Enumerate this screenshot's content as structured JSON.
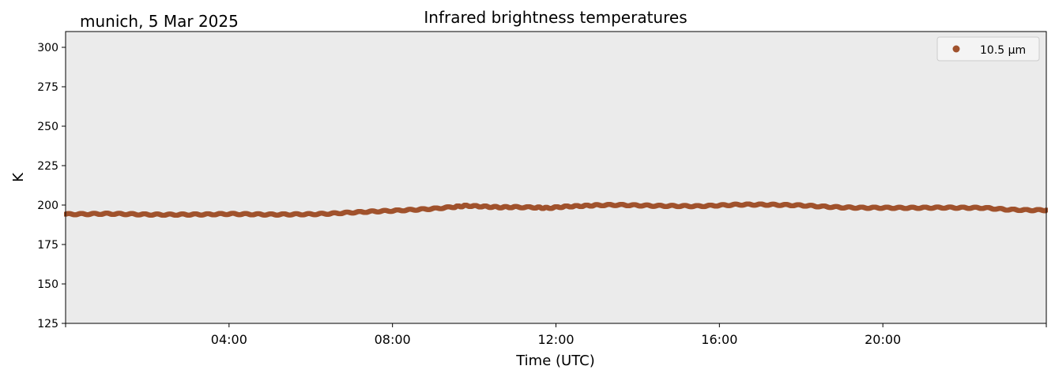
{
  "chart_data": {
    "type": "scatter",
    "title": "Infrared brightness temperatures",
    "location_date": "munich, 5 Mar 2025",
    "xlabel": "Time (UTC)",
    "ylabel": "K",
    "x_unit": "hours UTC",
    "xlim": [
      0,
      24
    ],
    "ylim": [
      125,
      310
    ],
    "y_ticks": [
      125,
      150,
      175,
      200,
      225,
      250,
      275,
      300
    ],
    "x_ticks": [
      {
        "value": 4,
        "label": "04:00"
      },
      {
        "value": 8,
        "label": "08:00"
      },
      {
        "value": 12,
        "label": "12:00"
      },
      {
        "value": 16,
        "label": "16:00"
      },
      {
        "value": 20,
        "label": "20:00"
      }
    ],
    "legend_position": "top-right",
    "series": [
      {
        "name": "10.5 µm",
        "color": "#a0522d",
        "points": [
          [
            0.0,
            194.2
          ],
          [
            0.5,
            194.3
          ],
          [
            1.0,
            194.5
          ],
          [
            1.5,
            194.3
          ],
          [
            2.0,
            194.0
          ],
          [
            2.5,
            193.9
          ],
          [
            3.0,
            194.0
          ],
          [
            3.5,
            194.1
          ],
          [
            4.0,
            194.4
          ],
          [
            4.5,
            194.2
          ],
          [
            5.0,
            194.0
          ],
          [
            5.5,
            194.1
          ],
          [
            6.0,
            194.2
          ],
          [
            6.5,
            194.6
          ],
          [
            7.0,
            195.3
          ],
          [
            7.5,
            195.9
          ],
          [
            8.0,
            196.4
          ],
          [
            8.5,
            197.0
          ],
          [
            9.0,
            197.7
          ],
          [
            9.5,
            198.8
          ],
          [
            9.8,
            199.6
          ],
          [
            10.2,
            199.1
          ],
          [
            10.6,
            198.6
          ],
          [
            11.0,
            198.7
          ],
          [
            11.5,
            198.5
          ],
          [
            11.8,
            198.1
          ],
          [
            12.2,
            199.0
          ],
          [
            12.6,
            199.4
          ],
          [
            13.0,
            199.9
          ],
          [
            13.5,
            200.1
          ],
          [
            14.0,
            199.8
          ],
          [
            14.5,
            199.5
          ],
          [
            15.0,
            199.4
          ],
          [
            15.5,
            199.3
          ],
          [
            16.0,
            199.8
          ],
          [
            16.5,
            200.3
          ],
          [
            17.0,
            200.3
          ],
          [
            17.5,
            200.1
          ],
          [
            18.0,
            199.8
          ],
          [
            18.5,
            199.1
          ],
          [
            19.0,
            198.5
          ],
          [
            19.5,
            198.3
          ],
          [
            20.0,
            198.3
          ],
          [
            20.5,
            198.2
          ],
          [
            21.0,
            198.3
          ],
          [
            21.5,
            198.4
          ],
          [
            22.0,
            198.3
          ],
          [
            22.5,
            198.2
          ],
          [
            23.0,
            197.2
          ],
          [
            23.5,
            196.8
          ],
          [
            24.0,
            196.8
          ]
        ]
      }
    ]
  }
}
